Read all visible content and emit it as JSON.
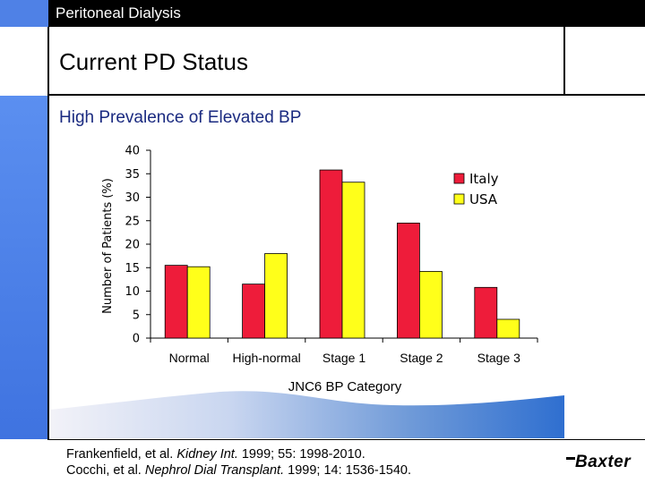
{
  "header": {
    "section": "Peritoneal Dialysis"
  },
  "slide": {
    "title": "Current PD Status",
    "subtitle": "High Prevalence of Elevated BP"
  },
  "chart_data": {
    "type": "bar",
    "categories": [
      "Normal",
      "High-normal",
      "Stage 1",
      "Stage 2",
      "Stage 3"
    ],
    "series": [
      {
        "name": "Italy",
        "values": [
          15.5,
          11.5,
          35.8,
          24.5,
          10.8
        ],
        "color": "#ee1c3a"
      },
      {
        "name": "USA",
        "values": [
          15.2,
          18.0,
          33.2,
          14.2,
          4.0
        ],
        "color": "#ffff1a"
      }
    ],
    "xlabel": "JNC6 BP Category",
    "ylabel": "Number of Patients (%)",
    "ylim": [
      0,
      40
    ],
    "yticks": [
      "0",
      "5",
      "10",
      "15",
      "20",
      "25",
      "30",
      "35",
      "40"
    ],
    "grid": false,
    "legend_position": "top-right"
  },
  "footer": {
    "ref1_authors": "Frankenfield, et al. ",
    "ref1_journal": "Kidney Int.",
    "ref1_rest": " 1999; 55: 1998-2010.",
    "ref2_authors": "Cocchi, et al. ",
    "ref2_journal": "Nephrol Dial Transplant.",
    "ref2_rest": " 1999; 14: 1536-1540.",
    "logo": "Baxter"
  }
}
